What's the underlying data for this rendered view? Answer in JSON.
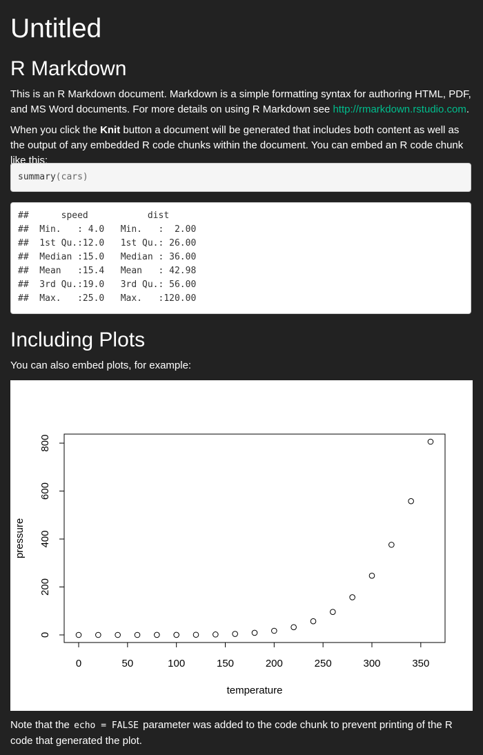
{
  "title": "Untitled",
  "sections": {
    "rmarkdown": {
      "heading": "R Markdown",
      "p1_text": "This is an R Markdown document. Markdown is a simple formatting syntax for authoring HTML, PDF, and MS Word documents. For more details on using R Markdown see ",
      "p1_link": "http://rmarkdown.rstudio.com",
      "p1_end": ".",
      "p2_a": "When you click the ",
      "p2_bold": "Knit",
      "p2_b": " button a document will be generated that includes both content as well as the output of any embedded R code chunks within the document. You can embed an R code chunk like this:"
    },
    "code_input": {
      "fn": "summary",
      "args": "(cars)"
    },
    "code_output": {
      "lines": [
        "##      speed           dist       ",
        "##  Min.   : 4.0   Min.   :  2.00  ",
        "##  1st Qu.:12.0   1st Qu.: 26.00  ",
        "##  Median :15.0   Median : 36.00  ",
        "##  Mean   :15.4   Mean   : 42.98  ",
        "##  3rd Qu.:19.0   3rd Qu.: 56.00  ",
        "##  Max.   :25.0   Max.   :120.00  "
      ]
    },
    "plots": {
      "heading": "Including Plots",
      "intro": "You can also embed plots, for example:",
      "note_a": "Note that the ",
      "note_code": "echo = FALSE",
      "note_b": " parameter was added to the code chunk to prevent printing of the R code that generated the plot."
    }
  },
  "chart_data": {
    "type": "scatter",
    "xlabel": "temperature",
    "ylabel": "pressure",
    "xlim": [
      0,
      360
    ],
    "ylim": [
      0,
      806
    ],
    "x_ticks": [
      0,
      50,
      100,
      150,
      200,
      250,
      300,
      350
    ],
    "y_ticks": [
      0,
      200,
      400,
      600,
      800
    ],
    "x": [
      0,
      20,
      40,
      60,
      80,
      100,
      120,
      140,
      160,
      180,
      200,
      220,
      240,
      260,
      280,
      300,
      320,
      340,
      360
    ],
    "y": [
      0.0002,
      0.0012,
      0.006,
      0.03,
      0.09,
      0.27,
      0.75,
      1.85,
      4.2,
      8.8,
      17.3,
      32.1,
      57,
      96,
      157,
      247,
      376,
      558,
      806
    ],
    "marker": "open-circle",
    "grid": false
  }
}
